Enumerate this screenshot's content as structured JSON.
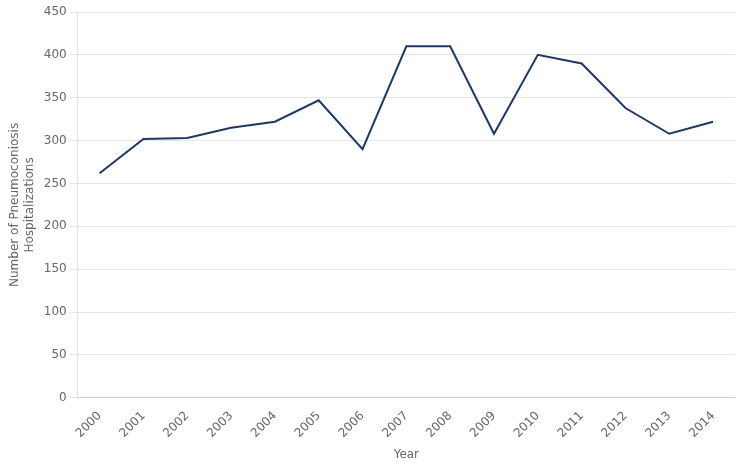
{
  "chart_data": {
    "type": "line",
    "x": [
      2000,
      2001,
      2002,
      2003,
      2004,
      2005,
      2006,
      2007,
      2008,
      2009,
      2010,
      2011,
      2012,
      2013,
      2014
    ],
    "values": [
      262,
      302,
      303,
      315,
      322,
      347,
      290,
      410,
      410,
      308,
      400,
      390,
      338,
      308,
      322
    ],
    "color": "#1F3864",
    "xlabel": "Year",
    "ylabel": "Number of Pneumoconiosis\nHospitalizations",
    "xlim": [
      1999.5,
      2014.5
    ],
    "xticks": [
      2000,
      2001,
      2002,
      2003,
      2004,
      2005,
      2006,
      2007,
      2008,
      2009,
      2010,
      2011,
      2012,
      2013,
      2014
    ],
    "ylim": [
      0,
      450
    ],
    "yticks": [
      0,
      50,
      100,
      150,
      200,
      250,
      300,
      350,
      400,
      450
    ],
    "grid": "y"
  }
}
